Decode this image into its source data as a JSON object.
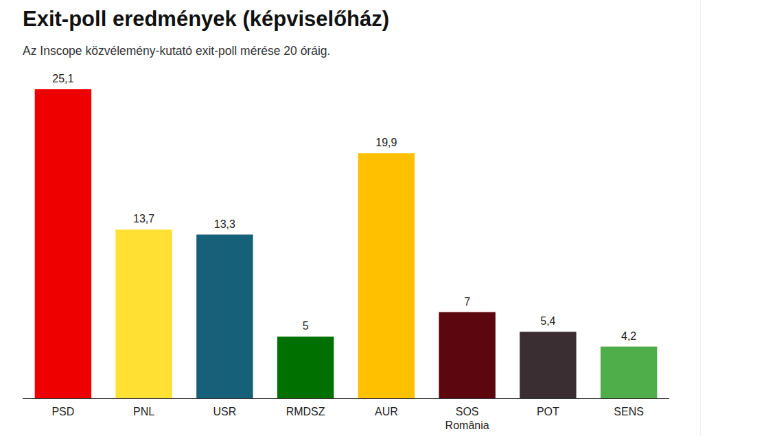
{
  "chart_data": {
    "type": "bar",
    "title": "Exit-poll eredmények (képviselőház)",
    "subtitle": "Az Inscope közvélemény-kutató exit-poll mérése 20 óráig.",
    "categories": [
      "PSD",
      "PNL",
      "USR",
      "RMDSZ",
      "AUR",
      "SOS România",
      "POT",
      "SENS"
    ],
    "values": [
      25.1,
      13.7,
      13.3,
      5,
      19.9,
      7,
      5.4,
      4.2
    ],
    "value_labels": [
      "25,1",
      "13,7",
      "13,3",
      "5",
      "19,9",
      "7",
      "5,4",
      "4,2"
    ],
    "colors": [
      "#ee0000",
      "#ffe033",
      "#17607a",
      "#007000",
      "#ffc000",
      "#5c0610",
      "#3a2e33",
      "#4fae4a"
    ],
    "ylim": [
      0,
      25.1
    ],
    "data_labels": true,
    "tick_labels": "x",
    "grid": false
  }
}
